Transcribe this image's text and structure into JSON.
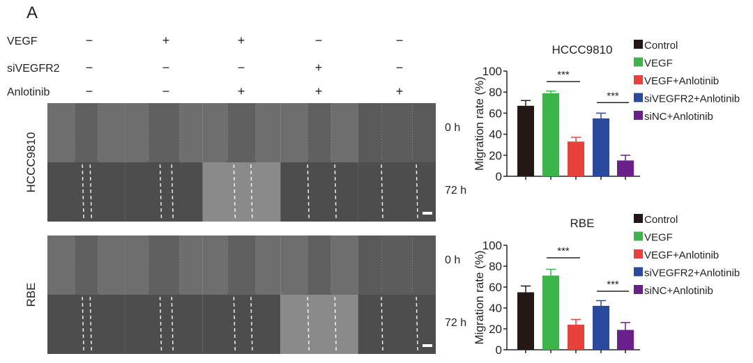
{
  "panel_label": "A",
  "treatment_rows": [
    {
      "label": "VEGF",
      "signs": [
        "−",
        "+",
        "+",
        "−",
        "−"
      ]
    },
    {
      "label": "siVEGFR2",
      "signs": [
        "−",
        "−",
        "−",
        "+",
        "−"
      ]
    },
    {
      "label": "Anlotinib",
      "signs": [
        "−",
        "−",
        "+",
        "+",
        "+"
      ]
    }
  ],
  "micrographs": [
    {
      "cell_line": "HCCC9810",
      "time_labels": [
        "0 h",
        "72 h"
      ]
    },
    {
      "cell_line": "RBE",
      "time_labels": [
        "0 h",
        "72 h"
      ]
    }
  ],
  "colors": {
    "Control": "#231815",
    "VEGF": "#3bb54a",
    "VEGF+Anlotinib": "#e8413c",
    "siVEGFR2+Anlotinib": "#2a4a9e",
    "siNC+Anlotinib": "#6a1f8a"
  },
  "chart_data": [
    {
      "type": "bar",
      "title": "HCCC9810",
      "ylabel": "Migration rate (%)",
      "ylim": [
        0,
        100
      ],
      "yticks": [
        "0",
        "20",
        "40",
        "60",
        "80",
        "100"
      ],
      "categories": [
        "Control",
        "VEGF",
        "VEGF+Anlotinib",
        "siVEGFR2+Anlotinib",
        "siNC+Anlotinib"
      ],
      "values": [
        67,
        79,
        33,
        55,
        15
      ],
      "errors": [
        5,
        2,
        4,
        5,
        5
      ],
      "legend": [
        "Control",
        "VEGF",
        "VEGF+Anlotinib",
        "siVEGFR2+Anlotinib",
        "siNC+Anlotinib"
      ],
      "annotations": [
        {
          "text": "***",
          "between": [
            1,
            2
          ],
          "y": 90
        },
        {
          "text": "***",
          "between": [
            3,
            4
          ],
          "y": 70
        }
      ]
    },
    {
      "type": "bar",
      "title": "RBE",
      "ylabel": "Migration rate (%)",
      "ylim": [
        0,
        100
      ],
      "yticks": [
        "0",
        "20",
        "40",
        "60",
        "80",
        "100"
      ],
      "categories": [
        "Control",
        "VEGF",
        "VEGF+Anlotinib",
        "siVEGFR2+Anlotinib",
        "siNC+Anlotinib"
      ],
      "values": [
        55,
        71,
        24,
        42,
        19
      ],
      "errors": [
        6,
        6,
        5,
        5,
        7
      ],
      "legend": [
        "Control",
        "VEGF",
        "VEGF+Anlotinib",
        "siVEGFR2+Anlotinib",
        "siNC+Anlotinib"
      ],
      "annotations": [
        {
          "text": "***",
          "between": [
            1,
            2
          ],
          "y": 88
        },
        {
          "text": "***",
          "between": [
            3,
            4
          ],
          "y": 56
        }
      ]
    }
  ]
}
